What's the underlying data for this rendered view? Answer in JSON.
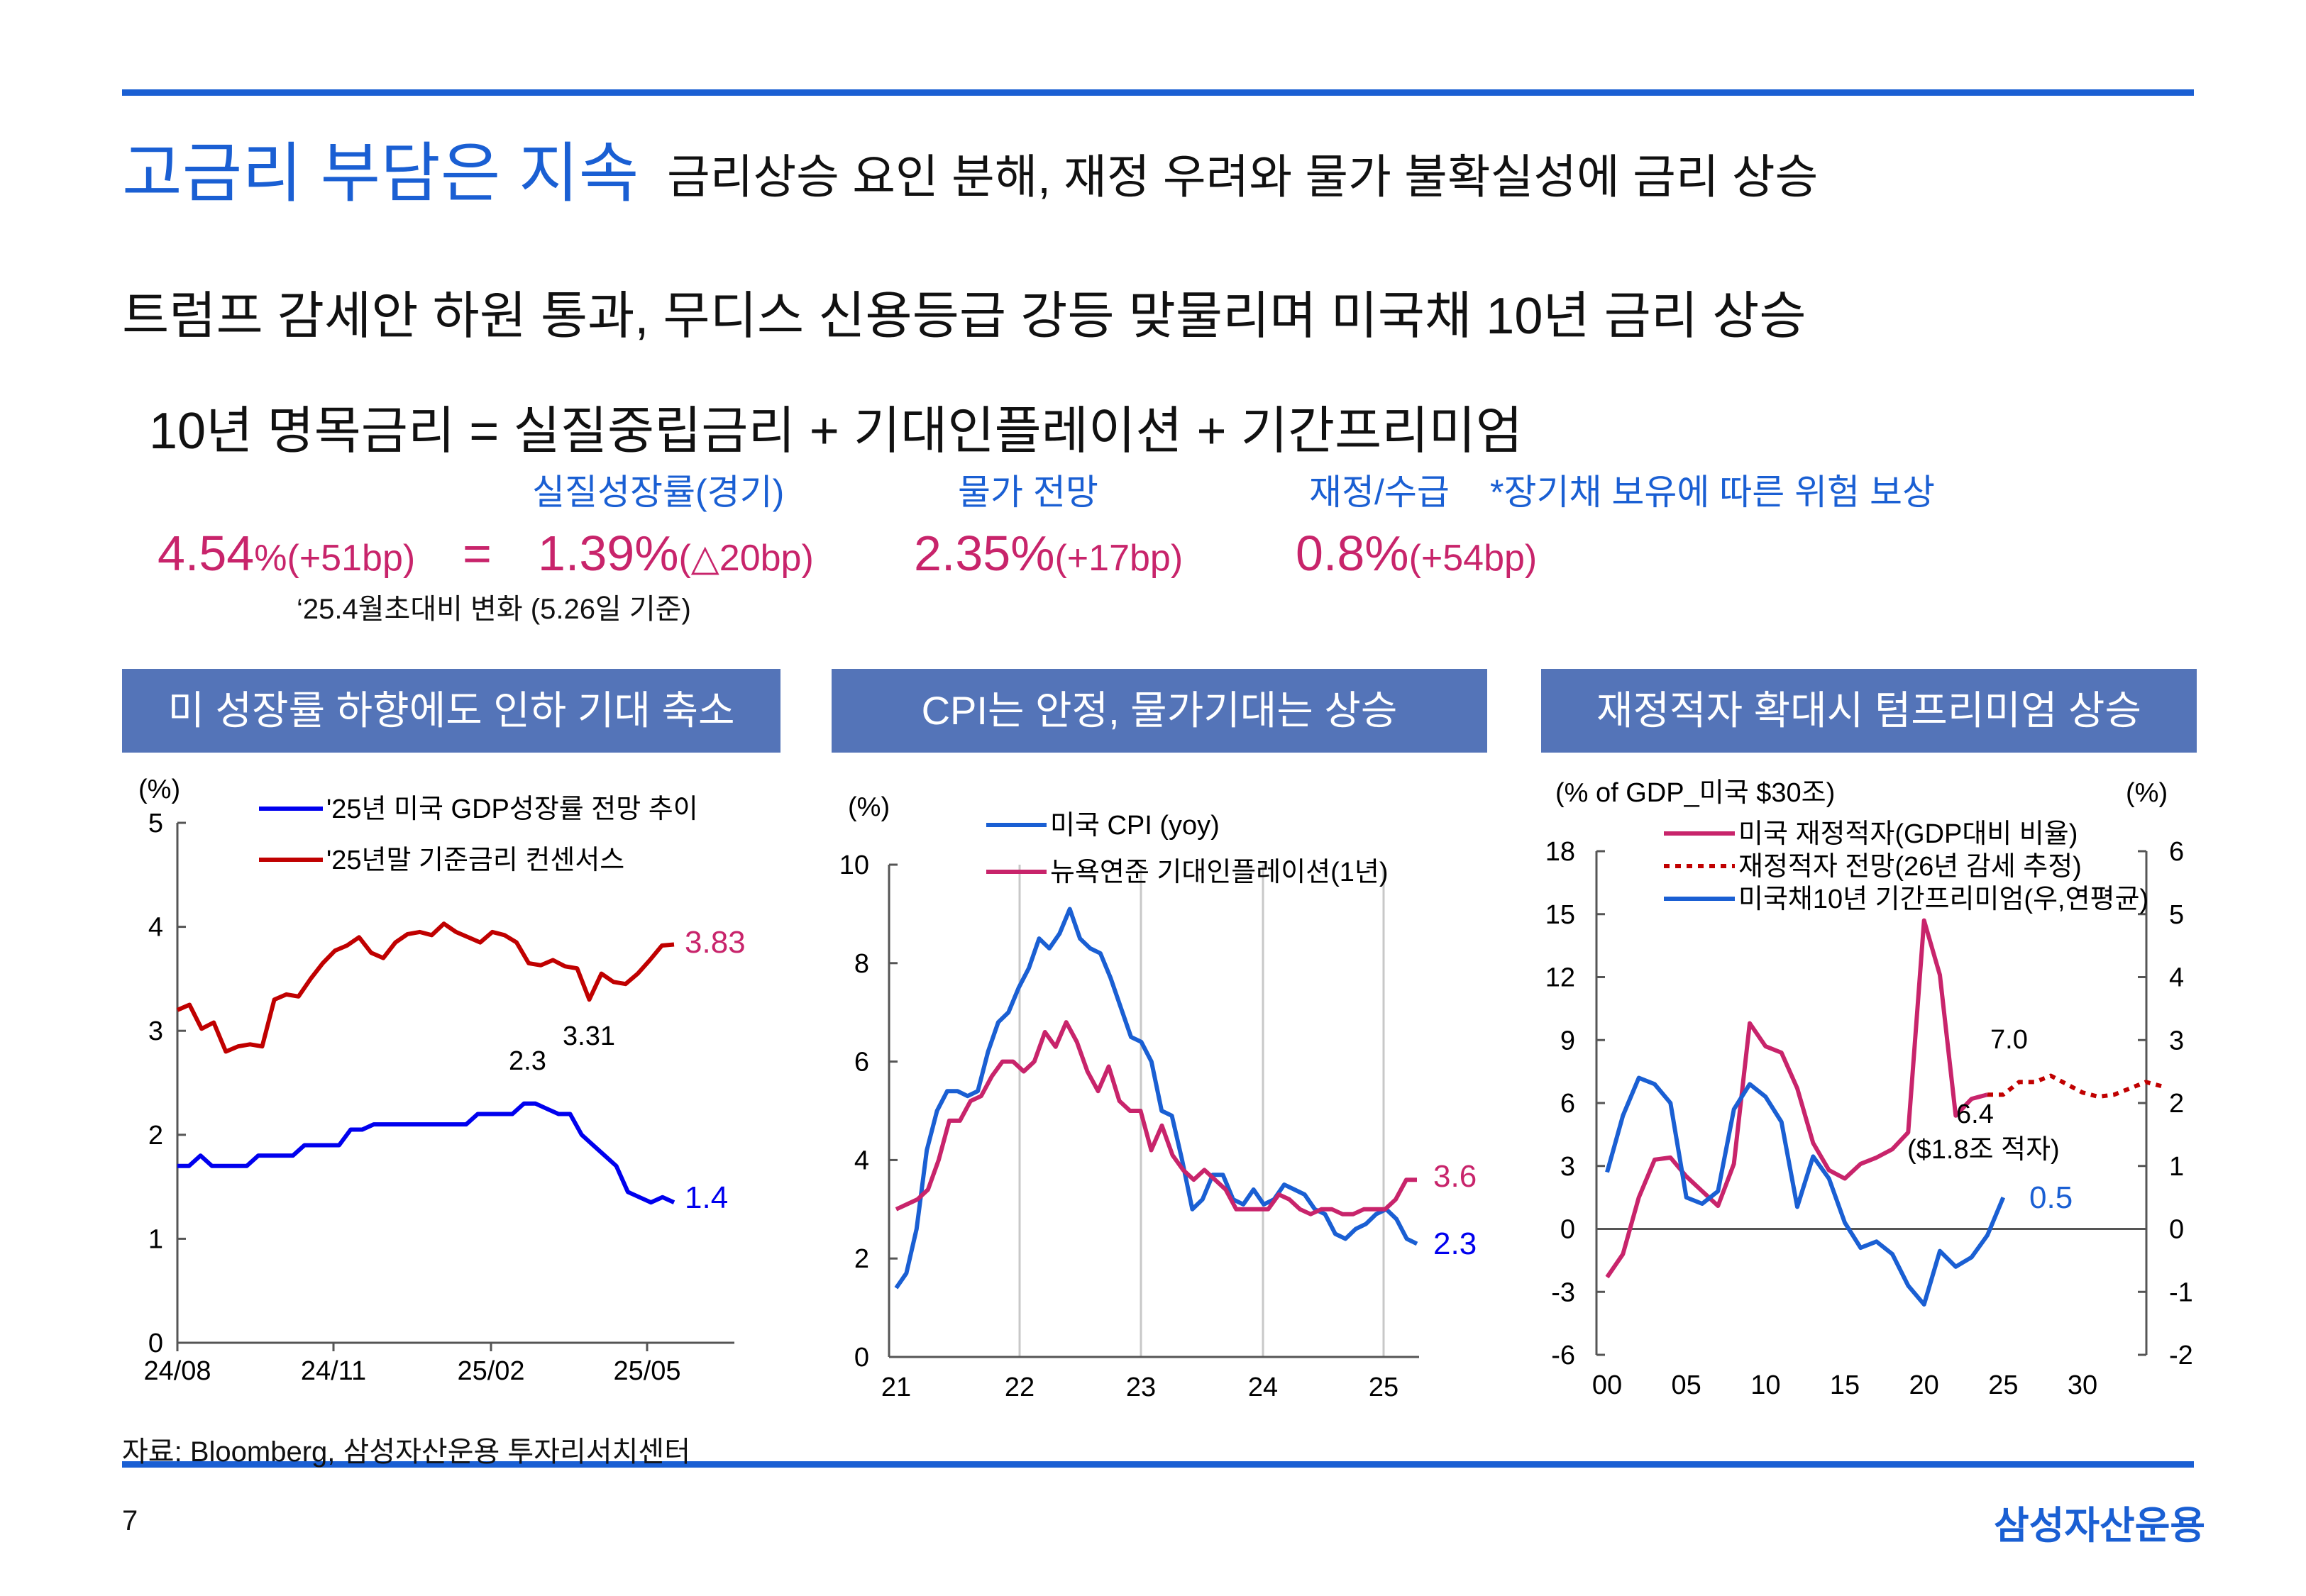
{
  "header": {
    "title": "고금리 부담은 지속",
    "subtitle": "금리상승 요인 분해, 재정 우려와 물가 불확실성에 금리 상승"
  },
  "headline": "트럼프 감세안 하원 통과, 무디스 신용등급 강등 맞물리며 미국채 10년 금리 상승",
  "formula": "10년 명목금리 = 실질중립금리 + 기대인플레이션 + 기간프리미엄",
  "components": {
    "real_label": "실질성장률(경기)",
    "inflation_label": "물가 전망",
    "fiscal_label": "재정/수급",
    "premium_note": "*장기채 보유에 따른 위험 보상",
    "nominal_value": "4.54",
    "nominal_unit": "%",
    "nominal_change": "(+51bp)",
    "equals": "=",
    "real_value": "1.39%",
    "real_change": "(△20bp)",
    "inflation_value": "2.35%",
    "inflation_change": "(+17bp)",
    "fiscal_value": "0.8%",
    "fiscal_change": "(+54bp)",
    "basis_note": "‘25.4월초대비 변화 (5.26일 기준)"
  },
  "colors": {
    "accent": "#1a5fd3",
    "magenta": "#c8246b",
    "panel": "#5474b8",
    "red": "#c00000",
    "blue": "#0000ee"
  },
  "panels": [
    {
      "title": "미 성장률 하향에도 인하 기대 축소"
    },
    {
      "title": "CPI는 안정, 물가기대는 상승"
    },
    {
      "title": "재정적자 확대시 텀프리미엄 상승"
    }
  ],
  "chart_data": [
    {
      "type": "line",
      "unit_label": "(%)",
      "ylim": [
        0,
        5
      ],
      "yticks": [
        "0",
        "1",
        "2",
        "3",
        "4",
        "5"
      ],
      "xticks": [
        "24/08",
        "24/11",
        "25/02",
        "25/05"
      ],
      "series": [
        {
          "name": "'25년 미국 GDP성장률 전망 추이",
          "values": [
            1.7,
            1.7,
            1.8,
            1.7,
            1.7,
            1.7,
            1.7,
            1.8,
            1.8,
            1.8,
            1.8,
            1.9,
            1.9,
            1.9,
            1.9,
            2.05,
            2.05,
            2.1,
            2.1,
            2.1,
            2.1,
            2.1,
            2.1,
            2.1,
            2.1,
            2.1,
            2.2,
            2.2,
            2.2,
            2.2,
            2.3,
            2.3,
            2.25,
            2.2,
            2.2,
            2.0,
            1.9,
            1.8,
            1.7,
            1.45,
            1.4,
            1.35,
            1.4,
            1.35
          ]
        },
        {
          "name": "'25년말 기준금리 컨센서스",
          "values": [
            3.2,
            3.25,
            3.02,
            3.08,
            2.8,
            2.85,
            2.87,
            2.85,
            3.3,
            3.35,
            3.33,
            3.5,
            3.65,
            3.77,
            3.82,
            3.9,
            3.75,
            3.7,
            3.85,
            3.93,
            3.95,
            3.92,
            4.03,
            3.95,
            3.9,
            3.85,
            3.95,
            3.92,
            3.85,
            3.65,
            3.63,
            3.68,
            3.62,
            3.6,
            3.3,
            3.55,
            3.47,
            3.45,
            3.55,
            3.68,
            3.82,
            3.83
          ]
        }
      ],
      "annotations": [
        "3.83",
        "1.4",
        "2.3",
        "3.31"
      ]
    },
    {
      "type": "line",
      "unit_label": "(%)",
      "ylim": [
        0,
        10
      ],
      "yticks": [
        "0",
        "2",
        "4",
        "6",
        "8",
        "10"
      ],
      "xticks": [
        "21",
        "22",
        "23",
        "24",
        "25"
      ],
      "grid": "vertical",
      "series": [
        {
          "name": "미국 CPI (yoy)",
          "values": [
            1.4,
            1.7,
            2.6,
            4.2,
            5.0,
            5.4,
            5.4,
            5.3,
            5.4,
            6.2,
            6.8,
            7.0,
            7.5,
            7.9,
            8.5,
            8.3,
            8.6,
            9.1,
            8.5,
            8.3,
            8.2,
            7.7,
            7.1,
            6.5,
            6.4,
            6.0,
            5.0,
            4.9,
            4.0,
            3.0,
            3.2,
            3.7,
            3.7,
            3.2,
            3.1,
            3.4,
            3.1,
            3.2,
            3.5,
            3.4,
            3.3,
            3.0,
            2.9,
            2.5,
            2.4,
            2.6,
            2.7,
            2.9,
            3.0,
            2.8,
            2.4,
            2.3
          ]
        },
        {
          "name": "뉴욕연준 기대인플레이션(1년)",
          "values": [
            3.0,
            3.1,
            3.2,
            3.4,
            4.0,
            4.8,
            4.8,
            5.2,
            5.3,
            5.7,
            6.0,
            6.0,
            5.8,
            6.0,
            6.6,
            6.3,
            6.8,
            6.4,
            5.8,
            5.4,
            5.9,
            5.2,
            5.0,
            5.0,
            4.2,
            4.7,
            4.1,
            3.8,
            3.6,
            3.8,
            3.6,
            3.4,
            3.0,
            3.0,
            3.0,
            3.0,
            3.3,
            3.2,
            3.0,
            2.9,
            3.0,
            3.0,
            2.9,
            2.9,
            3.0,
            3.0,
            3.0,
            3.2,
            3.6,
            3.6
          ]
        }
      ],
      "annotations": [
        "3.6",
        "2.3"
      ]
    },
    {
      "type": "line",
      "unit_label": "(% of GDP_미국 $30조)",
      "unit_label_right": "(%)",
      "ylim": [
        -6,
        18
      ],
      "ylim_right": [
        -2,
        6
      ],
      "yticks": [
        "-6",
        "-3",
        "0",
        "3",
        "6",
        "9",
        "12",
        "15",
        "18"
      ],
      "yticks_right": [
        "-2",
        "-1",
        "0",
        "1",
        "2",
        "3",
        "4",
        "5",
        "6"
      ],
      "xticks": [
        "00",
        "05",
        "10",
        "15",
        "20",
        "25",
        "30"
      ],
      "series": [
        {
          "name": "미국 재정적자(GDP대비 비율)",
          "x": [
            2000,
            2001,
            2002,
            2003,
            2004,
            2005,
            2006,
            2007,
            2008,
            2009,
            2010,
            2011,
            2012,
            2013,
            2014,
            2015,
            2016,
            2017,
            2018,
            2019,
            2020,
            2021,
            2022,
            2023,
            2024
          ],
          "values": [
            -2.3,
            -1.2,
            1.5,
            3.3,
            3.4,
            2.5,
            1.8,
            1.1,
            3.1,
            9.8,
            8.7,
            8.4,
            6.7,
            4.1,
            2.8,
            2.4,
            3.1,
            3.4,
            3.8,
            4.6,
            14.7,
            12.1,
            5.4,
            6.2,
            6.4
          ]
        },
        {
          "name": "재정적자 전망(26년 감세 추정)",
          "x": [
            2024,
            2025,
            2026,
            2027,
            2028,
            2029,
            2030,
            2031,
            2032,
            2033,
            2034,
            2035
          ],
          "values": [
            6.4,
            6.4,
            7.0,
            7.0,
            7.3,
            6.9,
            6.5,
            6.3,
            6.4,
            6.7,
            7.0,
            6.8
          ]
        },
        {
          "name": "미국채10년 기간프리미엄(우,연평균)",
          "x": [
            2000,
            2001,
            2002,
            2003,
            2004,
            2005,
            2006,
            2007,
            2008,
            2009,
            2010,
            2011,
            2012,
            2013,
            2014,
            2015,
            2016,
            2017,
            2018,
            2019,
            2020,
            2021,
            2022,
            2023,
            2024,
            2025
          ],
          "values": [
            0.9,
            1.8,
            2.4,
            2.3,
            2.0,
            0.5,
            0.4,
            0.6,
            1.9,
            2.3,
            2.1,
            1.7,
            0.35,
            1.15,
            0.8,
            0.1,
            -0.3,
            -0.2,
            -0.4,
            -0.9,
            -1.2,
            -0.35,
            -0.6,
            -0.45,
            -0.1,
            0.5
          ]
        }
      ],
      "annotations": [
        "7.0",
        "6.4",
        "($1.8조 적자)",
        "0.5"
      ]
    }
  ],
  "footer": {
    "source": "자료: Bloomberg, 삼성자산운용 투자리서치센터",
    "page": "7",
    "brand": "삼성자산운용"
  }
}
